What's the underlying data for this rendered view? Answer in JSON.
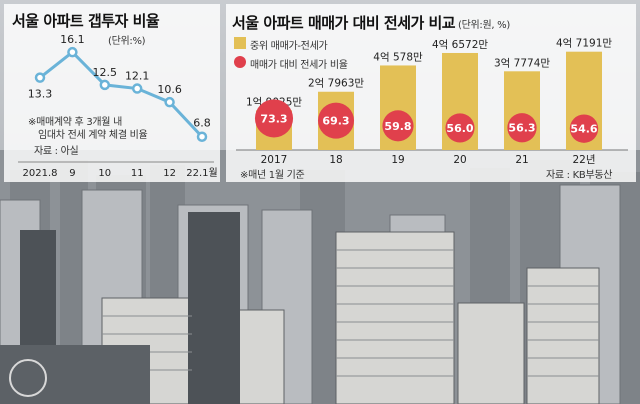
{
  "colors": {
    "bar": "#e3c056",
    "ratio_dot": "#e0404c",
    "line": "#6ab3d8",
    "line_marker_fill": "#ffffff"
  },
  "left": {
    "title": "서울 아파트 갭투자 비율",
    "unit": "(단위:%)",
    "note": [
      "※매매계약 후 3개월 내",
      "임대차 전세 계약 체결 비율"
    ],
    "source": "자료 : 아실"
  },
  "right": {
    "title": "서울 아파트 매매가 대비 전세가 비교",
    "unit": "(단위:원, %)",
    "legend_bar": "중위 매매가-전세가",
    "legend_dot": "매매가 대비 전세가 비율",
    "note": "※매년 1월 기준",
    "source": "자료 : KB부동산"
  },
  "chart_data": [
    {
      "type": "line",
      "title": "서울 아파트 갭투자 비율",
      "unit": "%",
      "categories": [
        "2021.8",
        "9",
        "10",
        "11",
        "12",
        "22.1월"
      ],
      "values": [
        13.3,
        16.1,
        12.5,
        12.1,
        10.6,
        6.8
      ],
      "value_labels": [
        "13.3",
        "16.1",
        "12.5",
        "12.1",
        "10.6",
        "6.8"
      ],
      "grid": false
    },
    {
      "type": "bar",
      "title": "서울 아파트 매매가 대비 전세가 비교",
      "categories": [
        "2017",
        "18",
        "19",
        "20",
        "21",
        "22년"
      ],
      "series": [
        {
          "name": "중위 매매가-전세가",
          "values": [
            190250000,
            279630000,
            405780000,
            465720000,
            377740000,
            471910000
          ],
          "labels": [
            "1억 9025만",
            "2억 7963만",
            "4억 578만",
            "4억 6572만",
            "3억 7774만",
            "4억 7191만"
          ]
        },
        {
          "name": "매매가 대비 전세가 비율",
          "values": [
            73.3,
            69.3,
            59.8,
            56.0,
            56.3,
            54.6
          ],
          "labels": [
            "73.3",
            "69.3",
            "59.8",
            "56.0",
            "56.3",
            "54.6"
          ]
        }
      ],
      "grid": false
    }
  ]
}
